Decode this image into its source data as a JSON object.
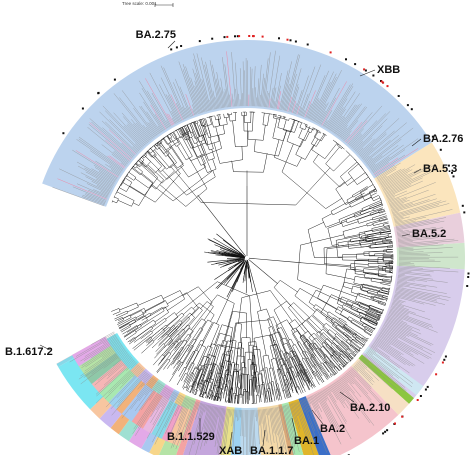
{
  "scale_bar": {
    "text": "Tree scale: 0.001"
  },
  "clades": [
    {
      "id": "BA.2.75",
      "label": "BA.2.75",
      "start": 290,
      "end": 58,
      "color": "#bcd3ee"
    },
    {
      "id": "XBB",
      "label": "XBB",
      "start": 58,
      "end": 78,
      "color": "#fbe5bd"
    },
    {
      "id": "BA.2.76",
      "label": "BA.2.76",
      "start": 78,
      "end": 86,
      "color": "#e9cfdc"
    },
    {
      "id": "BA.5.3",
      "label": "BA.5.3",
      "start": 86,
      "end": 93,
      "color": "#cfe6cc"
    },
    {
      "id": "BA.5.2",
      "label": "BA.5.2",
      "start": 93,
      "end": 130,
      "color": "#d8cdec"
    },
    {
      "id": "BA.2.10",
      "label": "BA.2.10",
      "start": 136,
      "end": 157,
      "color": "#f5c4cc"
    },
    {
      "id": "BA.2",
      "label": "BA.2",
      "start": 157,
      "end": 160,
      "color": "#3b6fc8"
    },
    {
      "id": "BA.1",
      "label": "BA.1",
      "start": 160,
      "end": 164,
      "color": "#e0b52a"
    },
    {
      "id": "BA.1.1.7",
      "label": "BA.1.1.7",
      "start": 168,
      "end": 176,
      "color": "#f2d8a8"
    },
    {
      "id": "XAB",
      "label": "XAB",
      "start": 176,
      "end": 182,
      "color": "#bcd9ee"
    },
    {
      "id": "B.1.1.529",
      "label": "B.1.1.529",
      "start": 188,
      "end": 198,
      "color": "#c4a6dc"
    },
    {
      "id": "B.1.617.2",
      "label": "B.1.617.2",
      "start": 226,
      "end": 240,
      "color": "#7be6f2"
    }
  ],
  "labels": [
    {
      "ref": "BA.2.75",
      "text": "BA.2.75"
    },
    {
      "ref": "XBB",
      "text": "XBB"
    },
    {
      "ref": "BA.2.76",
      "text": "BA.2.76"
    },
    {
      "ref": "BA.5.3",
      "text": "BA.5.3"
    },
    {
      "ref": "BA.5.2",
      "text": "BA.5.2"
    },
    {
      "ref": "BA.2.10",
      "text": "BA.2.10"
    },
    {
      "ref": "BA.2",
      "text": "BA.2"
    },
    {
      "ref": "BA.1",
      "text": "BA.1"
    },
    {
      "ref": "BA.1.1.7",
      "text": "BA.1.1.7"
    },
    {
      "ref": "XAB",
      "text": "XAB"
    },
    {
      "ref": "B.1.1.529",
      "text": "B.1.1.529"
    },
    {
      "ref": "B.1.617.2",
      "text": "B.1.617.2"
    }
  ],
  "minor_palette": [
    "#f4a3a3",
    "#b5e3a6",
    "#f7d68a",
    "#a9c8f0",
    "#e3a9e8",
    "#9fe0d2",
    "#f2b27a",
    "#c9b8f0",
    "#f7c6a0",
    "#9ed2f0",
    "#e8e08a",
    "#f0a0c8",
    "#a8e8b0",
    "#d8a878",
    "#88d8e8",
    "#f6b6b6",
    "#b8d890",
    "#e8b8e0",
    "#8fc8a8",
    "#f09a8a"
  ],
  "accent_colors": {
    "marker_red": "#e02020",
    "marker_black": "#111111",
    "highlight_pink": "#ff6b8a",
    "green_band": "#8cc63f"
  }
}
